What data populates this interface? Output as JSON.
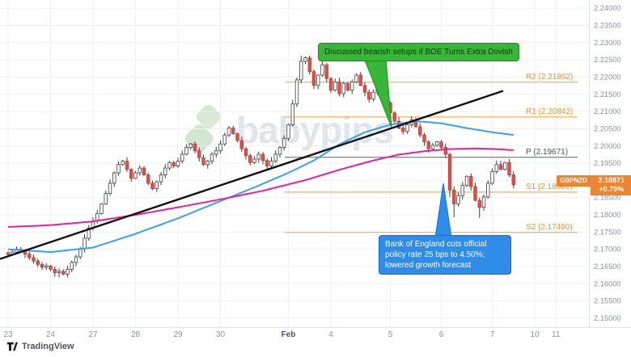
{
  "watermark": {
    "text": "babypips"
  },
  "footer": {
    "brand": "TradingView"
  },
  "price_label": {
    "symbol": "GBPNZD",
    "price": "2.18871",
    "change": "+0.79%",
    "color": "#ef8430"
  },
  "annotations": {
    "bearish_note": {
      "text": "Discussed bearish setups if BOE Turns Extra Dovish",
      "fill": "#37b637",
      "border": "#1f8a1f",
      "text_color": "#093909"
    },
    "boe_note": {
      "text": "Bank of England cuts official policy rate 25 bps to 4.50%; lowered growth forecast",
      "fill": "#2f8ce8",
      "border": "#1a6fc4",
      "text_color": "#ffffff"
    }
  },
  "chart_data": {
    "type": "candlestick",
    "symbol": "GBPNZD",
    "grid": true,
    "price_axis": {
      "min": 2.15,
      "max": 2.24,
      "step": 0.005,
      "labels": [
        "2.24000",
        "2.23500",
        "2.23000",
        "2.22500",
        "2.22000",
        "2.21500",
        "2.21000",
        "2.20500",
        "2.20000",
        "2.19500",
        "2.19000",
        "2.18500",
        "2.18000",
        "2.17500",
        "2.17000",
        "2.16500",
        "2.16000",
        "2.15500",
        "2.15000"
      ]
    },
    "time_axis": {
      "ticks": [
        {
          "label": "23",
          "i": 0
        },
        {
          "label": "24",
          "i": 10
        },
        {
          "label": "27",
          "i": 20
        },
        {
          "label": "28",
          "i": 30
        },
        {
          "label": "29",
          "i": 40
        },
        {
          "label": "30",
          "i": 50
        },
        {
          "label": "Feb",
          "i": 66,
          "bold": true
        },
        {
          "label": "4",
          "i": 76
        },
        {
          "label": "5",
          "i": 90
        },
        {
          "label": "6",
          "i": 102
        },
        {
          "label": "7",
          "i": 114
        },
        {
          "label": "10",
          "i": 124
        },
        {
          "label": "11",
          "i": 129
        }
      ]
    },
    "up_color": "#ffffff",
    "up_border": "#3a3f4a",
    "down_color": "#de5149",
    "down_border": "#b8443e",
    "wick_color": "#3a3f4a",
    "candles": {
      "first_open": 2.169,
      "closes": [
        2.1685,
        2.1692,
        2.17,
        2.1696,
        2.1686,
        2.1676,
        2.1666,
        2.1656,
        2.1648,
        2.1652,
        2.1642,
        2.1632,
        2.1636,
        2.1628,
        2.1642,
        2.1662,
        2.1678,
        2.1702,
        2.1732,
        2.1762,
        2.1782,
        2.1804,
        2.1832,
        2.1862,
        2.1892,
        2.1922,
        2.1946,
        2.1956,
        2.1932,
        2.1906,
        2.1922,
        2.1936,
        2.1916,
        2.1892,
        2.1876,
        2.1896,
        2.1916,
        2.1936,
        2.1952,
        2.1942,
        2.1956,
        2.1976,
        2.1996,
        2.2006,
        2.1986,
        2.1966,
        2.1946,
        2.1956,
        2.1976,
        2.1986,
        2.2006,
        2.2032,
        2.2052,
        2.2036,
        2.2016,
        2.1992,
        2.1972,
        2.1952,
        2.1962,
        2.1976,
        2.1958,
        2.1942,
        2.1956,
        2.1976,
        2.1996,
        2.2022,
        2.2062,
        2.2122,
        2.2192,
        2.2246,
        2.2256,
        2.2216,
        2.2176,
        2.2206,
        2.2236,
        2.2196,
        2.2162,
        2.2186,
        2.2152,
        2.2182,
        2.2162,
        2.2186,
        2.2206,
        2.2176,
        2.2156,
        2.2136,
        2.2156,
        2.2172,
        2.2146,
        2.2126,
        2.2096,
        2.2072,
        2.2052,
        2.2042,
        2.2062,
        2.2076,
        2.2056,
        2.2032,
        2.2012,
        2.1992,
        2.2002,
        2.2012,
        2.1996,
        2.1976,
        2.1872,
        2.1832,
        2.1856,
        2.1886,
        2.1912,
        2.1882,
        2.1842,
        2.1822,
        2.1852,
        2.1892,
        2.1926,
        2.1946,
        2.1932,
        2.1952,
        2.1916,
        2.18871
      ],
      "wick_overrides": [
        {
          "i": 12,
          "low": 2.1618
        },
        {
          "i": 69,
          "high": 2.2262
        },
        {
          "i": 70,
          "high": 2.226
        },
        {
          "i": 104,
          "low": 2.1852
        },
        {
          "i": 105,
          "low": 2.1793
        },
        {
          "i": 111,
          "low": 2.1791
        }
      ]
    },
    "moving_averages": [
      {
        "name": "fast-ma",
        "color": "#3aa0f0",
        "points": [
          [
            0,
            2.17
          ],
          [
            10,
            2.1692
          ],
          [
            20,
            2.1705
          ],
          [
            30,
            2.1745
          ],
          [
            40,
            2.179
          ],
          [
            50,
            2.184
          ],
          [
            58,
            2.188
          ],
          [
            66,
            2.1922
          ],
          [
            72,
            2.1958
          ],
          [
            78,
            2.2005
          ],
          [
            84,
            2.204
          ],
          [
            90,
            2.2062
          ],
          [
            96,
            2.2072
          ],
          [
            102,
            2.2066
          ],
          [
            108,
            2.2052
          ],
          [
            114,
            2.204
          ],
          [
            119,
            2.2032
          ]
        ]
      },
      {
        "name": "slow-ma",
        "color": "#ec1e9c",
        "points": [
          [
            0,
            2.1765
          ],
          [
            10,
            2.177
          ],
          [
            20,
            2.1781
          ],
          [
            30,
            2.18
          ],
          [
            40,
            2.1822
          ],
          [
            50,
            2.1845
          ],
          [
            60,
            2.187
          ],
          [
            70,
            2.1901
          ],
          [
            78,
            2.1931
          ],
          [
            86,
            2.1958
          ],
          [
            92,
            2.1975
          ],
          [
            98,
            2.1985
          ],
          [
            104,
            2.1991
          ],
          [
            110,
            2.1993
          ],
          [
            115,
            2.1991
          ],
          [
            119,
            2.1988
          ]
        ]
      }
    ],
    "trendline": {
      "color": "#111111",
      "points": [
        [
          0,
          2.1672
        ],
        [
          622,
          2.216
        ]
      ]
    },
    "pivot_levels": [
      {
        "label": "R2 (2.21852)",
        "price": 2.21852,
        "color": "#f7931a"
      },
      {
        "label": "R1 (2.20842)",
        "price": 2.20842,
        "color": "#f7931a"
      },
      {
        "label": "P (2.19671)",
        "price": 2.19671,
        "color": "#4a4e58"
      },
      {
        "label": "S1 (2.18661)",
        "price": 2.18661,
        "color": "#f7931a"
      },
      {
        "label": "S2 (2.17490)",
        "price": 2.1749,
        "color": "#f7931a"
      }
    ]
  }
}
